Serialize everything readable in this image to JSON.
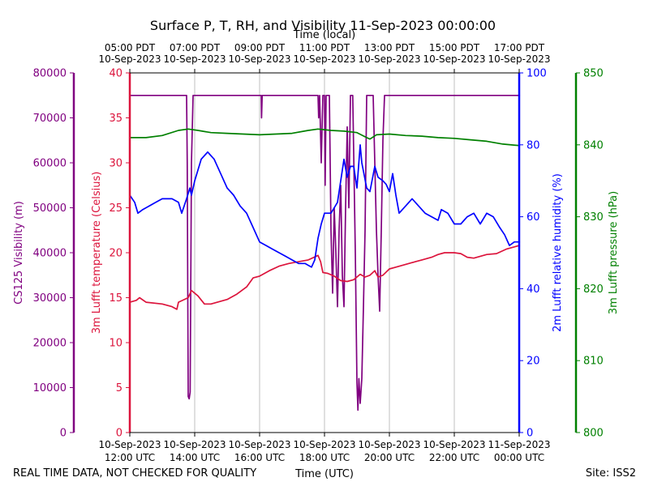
{
  "chart_data": {
    "type": "line",
    "title": "Surface P, T, RH, and Visibility 11-Sep-2023 00:00:00",
    "top_axis_label": "Time (local)",
    "bottom_axis_label": "Time (UTC)",
    "footer_left": "REAL TIME DATA, NOT CHECKED FOR QUALITY",
    "footer_right": "Site: ISS2",
    "x_range_hours_utc": [
      12,
      24
    ],
    "grid": "vertical",
    "bottom_ticks": [
      {
        "hour": 12,
        "line1": "10-Sep-2023",
        "line2": "12:00 UTC"
      },
      {
        "hour": 14,
        "line1": "10-Sep-2023",
        "line2": "14:00 UTC"
      },
      {
        "hour": 16,
        "line1": "10-Sep-2023",
        "line2": "16:00 UTC"
      },
      {
        "hour": 18,
        "line1": "10-Sep-2023",
        "line2": "18:00 UTC"
      },
      {
        "hour": 20,
        "line1": "10-Sep-2023",
        "line2": "20:00 UTC"
      },
      {
        "hour": 22,
        "line1": "10-Sep-2023",
        "line2": "22:00 UTC"
      },
      {
        "hour": 24,
        "line1": "11-Sep-2023",
        "line2": "00:00 UTC"
      }
    ],
    "top_ticks": [
      {
        "hour": 12,
        "line1": "05:00 PDT",
        "line2": "10-Sep-2023"
      },
      {
        "hour": 14,
        "line1": "07:00 PDT",
        "line2": "10-Sep-2023"
      },
      {
        "hour": 16,
        "line1": "09:00 PDT",
        "line2": "10-Sep-2023"
      },
      {
        "hour": 18,
        "line1": "11:00 PDT",
        "line2": "10-Sep-2023"
      },
      {
        "hour": 20,
        "line1": "13:00 PDT",
        "line2": "10-Sep-2023"
      },
      {
        "hour": 22,
        "line1": "15:00 PDT",
        "line2": "10-Sep-2023"
      },
      {
        "hour": 24,
        "line1": "17:00 PDT",
        "line2": "10-Sep-2023"
      }
    ],
    "axes": {
      "visibility": {
        "label": "CS125 Visibility (m)",
        "color": "#800080",
        "ylim": [
          0,
          80000
        ],
        "ticks": [
          0,
          10000,
          20000,
          30000,
          40000,
          50000,
          60000,
          70000,
          80000
        ]
      },
      "temperature": {
        "label": "3m Lufft temperature (Celsius)",
        "color": "#dc143c",
        "ylim": [
          0,
          40
        ],
        "ticks": [
          0,
          5,
          10,
          15,
          20,
          25,
          30,
          35,
          40
        ]
      },
      "humidity": {
        "label": "2m Lufft relative humidity (%)",
        "color": "#0000ff",
        "ylim": [
          0,
          100
        ],
        "ticks": [
          0,
          20,
          40,
          60,
          80,
          100
        ]
      },
      "pressure": {
        "label": "3m Lufft pressure (hPa)",
        "color": "#008000",
        "ylim": [
          800,
          850
        ],
        "ticks": [
          800,
          810,
          820,
          830,
          840,
          850
        ]
      }
    },
    "series": [
      {
        "name": "CS125 Visibility",
        "axis": "visibility",
        "color": "#800080",
        "points": [
          [
            12.0,
            75000
          ],
          [
            13.75,
            75000
          ],
          [
            13.77,
            60000
          ],
          [
            13.8,
            8000
          ],
          [
            13.83,
            7500
          ],
          [
            13.86,
            9000
          ],
          [
            13.9,
            60000
          ],
          [
            13.95,
            75000
          ],
          [
            16.05,
            75000
          ],
          [
            16.06,
            70000
          ],
          [
            16.08,
            75000
          ],
          [
            17.8,
            75000
          ],
          [
            17.82,
            70000
          ],
          [
            17.85,
            75000
          ],
          [
            17.9,
            60000
          ],
          [
            17.95,
            75000
          ],
          [
            18.0,
            75000
          ],
          [
            18.02,
            55000
          ],
          [
            18.05,
            75000
          ],
          [
            18.15,
            75000
          ],
          [
            18.2,
            45000
          ],
          [
            18.25,
            31000
          ],
          [
            18.3,
            50000
          ],
          [
            18.35,
            40000
          ],
          [
            18.4,
            28000
          ],
          [
            18.45,
            45000
          ],
          [
            18.5,
            55000
          ],
          [
            18.55,
            35000
          ],
          [
            18.6,
            28000
          ],
          [
            18.65,
            50000
          ],
          [
            18.7,
            68000
          ],
          [
            18.75,
            50000
          ],
          [
            18.8,
            75000
          ],
          [
            18.87,
            75000
          ],
          [
            18.9,
            62000
          ],
          [
            18.95,
            40000
          ],
          [
            19.0,
            11000
          ],
          [
            19.03,
            5000
          ],
          [
            19.06,
            12000
          ],
          [
            19.1,
            6500
          ],
          [
            19.15,
            12000
          ],
          [
            19.2,
            28000
          ],
          [
            19.25,
            45000
          ],
          [
            19.3,
            75000
          ],
          [
            19.5,
            75000
          ],
          [
            19.55,
            60000
          ],
          [
            19.6,
            45000
          ],
          [
            19.65,
            35000
          ],
          [
            19.7,
            27000
          ],
          [
            19.75,
            45000
          ],
          [
            19.8,
            65000
          ],
          [
            19.85,
            75000
          ],
          [
            24.0,
            75000
          ]
        ]
      },
      {
        "name": "3m Lufft temperature",
        "axis": "temperature",
        "color": "#dc143c",
        "points": [
          [
            12.0,
            14.5
          ],
          [
            12.2,
            14.7
          ],
          [
            12.3,
            15.0
          ],
          [
            12.5,
            14.5
          ],
          [
            13.0,
            14.3
          ],
          [
            13.3,
            14.0
          ],
          [
            13.45,
            13.7
          ],
          [
            13.5,
            14.5
          ],
          [
            13.8,
            15.0
          ],
          [
            13.9,
            15.8
          ],
          [
            14.1,
            15.2
          ],
          [
            14.3,
            14.3
          ],
          [
            14.5,
            14.3
          ],
          [
            15.0,
            14.8
          ],
          [
            15.3,
            15.4
          ],
          [
            15.6,
            16.2
          ],
          [
            15.8,
            17.2
          ],
          [
            16.0,
            17.4
          ],
          [
            16.3,
            18.0
          ],
          [
            16.6,
            18.5
          ],
          [
            16.9,
            18.8
          ],
          [
            17.2,
            19.0
          ],
          [
            17.5,
            19.2
          ],
          [
            17.8,
            19.7
          ],
          [
            17.88,
            19.0
          ],
          [
            17.95,
            17.8
          ],
          [
            18.1,
            17.7
          ],
          [
            18.3,
            17.4
          ],
          [
            18.5,
            16.9
          ],
          [
            18.7,
            16.8
          ],
          [
            18.9,
            17.0
          ],
          [
            19.1,
            17.6
          ],
          [
            19.25,
            17.3
          ],
          [
            19.4,
            17.5
          ],
          [
            19.55,
            18.0
          ],
          [
            19.65,
            17.3
          ],
          [
            19.8,
            17.5
          ],
          [
            20.0,
            18.2
          ],
          [
            20.2,
            18.4
          ],
          [
            20.5,
            18.7
          ],
          [
            20.8,
            19.0
          ],
          [
            21.0,
            19.2
          ],
          [
            21.3,
            19.5
          ],
          [
            21.5,
            19.8
          ],
          [
            21.7,
            20.0
          ],
          [
            22.0,
            20.0
          ],
          [
            22.2,
            19.9
          ],
          [
            22.4,
            19.5
          ],
          [
            22.6,
            19.4
          ],
          [
            22.8,
            19.6
          ],
          [
            23.0,
            19.8
          ],
          [
            23.3,
            19.9
          ],
          [
            23.6,
            20.4
          ],
          [
            24.0,
            20.8
          ]
        ]
      },
      {
        "name": "2m Lufft relative humidity",
        "axis": "humidity",
        "color": "#0000ff",
        "points": [
          [
            12.0,
            66
          ],
          [
            12.15,
            64
          ],
          [
            12.25,
            61
          ],
          [
            12.4,
            62
          ],
          [
            12.6,
            63
          ],
          [
            12.8,
            64
          ],
          [
            13.0,
            65
          ],
          [
            13.3,
            65
          ],
          [
            13.5,
            64
          ],
          [
            13.6,
            61
          ],
          [
            13.75,
            65
          ],
          [
            13.85,
            68
          ],
          [
            13.9,
            66
          ],
          [
            14.0,
            70
          ],
          [
            14.2,
            76
          ],
          [
            14.4,
            78
          ],
          [
            14.6,
            76
          ],
          [
            14.8,
            72
          ],
          [
            15.0,
            68
          ],
          [
            15.2,
            66
          ],
          [
            15.4,
            63
          ],
          [
            15.6,
            61
          ],
          [
            15.8,
            57
          ],
          [
            16.0,
            53
          ],
          [
            16.2,
            52
          ],
          [
            16.4,
            51
          ],
          [
            16.6,
            50
          ],
          [
            16.8,
            49
          ],
          [
            17.0,
            48
          ],
          [
            17.2,
            47
          ],
          [
            17.4,
            47
          ],
          [
            17.6,
            46
          ],
          [
            17.7,
            48
          ],
          [
            17.8,
            54
          ],
          [
            17.9,
            58
          ],
          [
            18.0,
            61
          ],
          [
            18.2,
            61
          ],
          [
            18.4,
            64
          ],
          [
            18.5,
            70
          ],
          [
            18.6,
            76
          ],
          [
            18.7,
            71
          ],
          [
            18.8,
            74
          ],
          [
            18.9,
            74
          ],
          [
            19.0,
            68
          ],
          [
            19.1,
            80
          ],
          [
            19.15,
            75
          ],
          [
            19.3,
            68
          ],
          [
            19.4,
            67
          ],
          [
            19.55,
            74
          ],
          [
            19.65,
            71
          ],
          [
            19.8,
            70
          ],
          [
            19.9,
            69
          ],
          [
            20.0,
            67
          ],
          [
            20.1,
            72
          ],
          [
            20.2,
            66
          ],
          [
            20.3,
            61
          ],
          [
            20.5,
            63
          ],
          [
            20.7,
            65
          ],
          [
            20.9,
            63
          ],
          [
            21.1,
            61
          ],
          [
            21.3,
            60
          ],
          [
            21.5,
            59
          ],
          [
            21.6,
            62
          ],
          [
            21.8,
            61
          ],
          [
            22.0,
            58
          ],
          [
            22.2,
            58
          ],
          [
            22.4,
            60
          ],
          [
            22.6,
            61
          ],
          [
            22.8,
            58
          ],
          [
            23.0,
            61
          ],
          [
            23.2,
            60
          ],
          [
            23.4,
            57
          ],
          [
            23.55,
            55
          ],
          [
            23.7,
            52
          ],
          [
            23.85,
            53
          ],
          [
            24.0,
            53
          ]
        ]
      },
      {
        "name": "3m Lufft pressure",
        "axis": "pressure",
        "color": "#008000",
        "points": [
          [
            12.0,
            841.0
          ],
          [
            12.5,
            841.0
          ],
          [
            13.0,
            841.3
          ],
          [
            13.5,
            842.0
          ],
          [
            13.8,
            842.2
          ],
          [
            14.1,
            842.0
          ],
          [
            14.5,
            841.7
          ],
          [
            15.0,
            841.6
          ],
          [
            15.5,
            841.5
          ],
          [
            16.0,
            841.4
          ],
          [
            16.5,
            841.5
          ],
          [
            17.0,
            841.6
          ],
          [
            17.5,
            842.0
          ],
          [
            17.8,
            842.2
          ],
          [
            18.2,
            842.0
          ],
          [
            18.6,
            841.9
          ],
          [
            19.0,
            841.7
          ],
          [
            19.3,
            841.0
          ],
          [
            19.4,
            840.8
          ],
          [
            19.6,
            841.4
          ],
          [
            20.0,
            841.5
          ],
          [
            20.5,
            841.3
          ],
          [
            21.0,
            841.2
          ],
          [
            21.5,
            841.0
          ],
          [
            22.0,
            840.9
          ],
          [
            22.5,
            840.7
          ],
          [
            23.0,
            840.5
          ],
          [
            23.5,
            840.1
          ],
          [
            24.0,
            839.9
          ]
        ]
      }
    ]
  }
}
